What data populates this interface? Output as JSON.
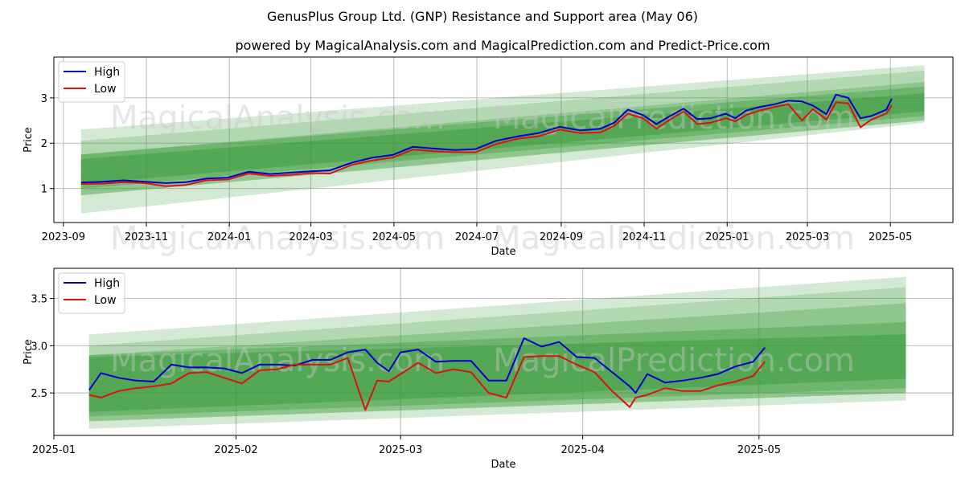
{
  "header": {
    "title": "GenusPlus Group Ltd. (GNP) Resistance and Support area (May 06)",
    "subtitle": "powered by MagicalAnalysis.com and MagicalPrediction.com and Predict-Price.com"
  },
  "watermarks": [
    "MagicalAnalysis.com",
    "MagicalPrediction.com"
  ],
  "colors": {
    "high": "#0000cc",
    "low": "#dd1111",
    "band": "#3a9a3a",
    "grid": "#b0b0b0"
  },
  "chart_data": [
    {
      "type": "line",
      "xlabel": "Date",
      "ylabel": "Price",
      "xlim": [
        "2023-08-25",
        "2025-06-16"
      ],
      "ylim": [
        0.25,
        3.9
      ],
      "grid": true,
      "legend": "top-left",
      "xticks": [
        "2023-09",
        "2023-11",
        "2024-01",
        "2024-03",
        "2024-05",
        "2024-07",
        "2024-09",
        "2024-11",
        "2025-01",
        "2025-03",
        "2025-05"
      ],
      "yticks": [
        1,
        2,
        3
      ],
      "bands": {
        "x_start": "2023-09-14",
        "x_end": "2025-05-26",
        "fills": [
          {
            "start": [
              0.45,
              2.3
            ],
            "end": [
              2.45,
              3.72
            ],
            "alpha": 0.22
          },
          {
            "start": [
              0.85,
              2.05
            ],
            "end": [
              2.5,
              3.6
            ],
            "alpha": 0.22
          },
          {
            "start": [
              0.85,
              1.75
            ],
            "end": [
              2.5,
              3.35
            ],
            "alpha": 0.3
          },
          {
            "start": [
              1.0,
              1.75
            ],
            "end": [
              2.6,
              3.25
            ],
            "alpha": 0.38
          },
          {
            "start": [
              1.1,
              1.65
            ],
            "end": [
              2.7,
              3.1
            ],
            "alpha": 0.5
          }
        ]
      },
      "series": [
        {
          "name": "High",
          "x": [
            "2023-09-14",
            "2023-09-30",
            "2023-10-15",
            "2023-10-31",
            "2023-11-15",
            "2023-11-30",
            "2023-12-15",
            "2023-12-31",
            "2024-01-15",
            "2024-01-31",
            "2024-02-15",
            "2024-03-01",
            "2024-03-15",
            "2024-03-31",
            "2024-04-15",
            "2024-04-30",
            "2024-05-15",
            "2024-05-31",
            "2024-06-15",
            "2024-06-30",
            "2024-07-15",
            "2024-07-31",
            "2024-08-15",
            "2024-08-31",
            "2024-09-15",
            "2024-09-30",
            "2024-10-10",
            "2024-10-20",
            "2024-10-31",
            "2024-11-10",
            "2024-11-20",
            "2024-11-30",
            "2024-12-10",
            "2024-12-20",
            "2024-12-31",
            "2025-01-07",
            "2025-01-15",
            "2025-01-25",
            "2025-02-05",
            "2025-02-15",
            "2025-02-25",
            "2025-03-05",
            "2025-03-15",
            "2025-03-22",
            "2025-03-31",
            "2025-04-09",
            "2025-04-17",
            "2025-04-28",
            "2025-05-02"
          ],
          "values": [
            1.13,
            1.15,
            1.18,
            1.15,
            1.12,
            1.14,
            1.22,
            1.24,
            1.37,
            1.32,
            1.35,
            1.38,
            1.4,
            1.57,
            1.68,
            1.74,
            1.92,
            1.88,
            1.85,
            1.87,
            2.05,
            2.15,
            2.22,
            2.36,
            2.28,
            2.32,
            2.45,
            2.74,
            2.62,
            2.42,
            2.6,
            2.76,
            2.53,
            2.55,
            2.65,
            2.55,
            2.72,
            2.8,
            2.86,
            2.94,
            2.92,
            2.83,
            2.64,
            3.07,
            3.0,
            2.55,
            2.6,
            2.74,
            2.98
          ]
        },
        {
          "name": "Low",
          "x": [
            "2023-09-14",
            "2023-09-30",
            "2023-10-15",
            "2023-10-31",
            "2023-11-15",
            "2023-11-30",
            "2023-12-15",
            "2023-12-31",
            "2024-01-15",
            "2024-01-31",
            "2024-02-15",
            "2024-03-01",
            "2024-03-15",
            "2024-03-31",
            "2024-04-15",
            "2024-04-30",
            "2024-05-15",
            "2024-05-31",
            "2024-06-15",
            "2024-06-30",
            "2024-07-15",
            "2024-07-31",
            "2024-08-15",
            "2024-08-31",
            "2024-09-15",
            "2024-09-30",
            "2024-10-10",
            "2024-10-20",
            "2024-10-31",
            "2024-11-10",
            "2024-11-20",
            "2024-11-30",
            "2024-12-10",
            "2024-12-20",
            "2024-12-31",
            "2025-01-07",
            "2025-01-15",
            "2025-01-25",
            "2025-02-05",
            "2025-02-15",
            "2025-02-25",
            "2025-03-05",
            "2025-03-15",
            "2025-03-22",
            "2025-03-31",
            "2025-04-09",
            "2025-04-17",
            "2025-04-28",
            "2025-05-02"
          ],
          "values": [
            1.1,
            1.11,
            1.14,
            1.12,
            1.05,
            1.08,
            1.18,
            1.2,
            1.33,
            1.28,
            1.3,
            1.34,
            1.33,
            1.52,
            1.62,
            1.68,
            1.86,
            1.82,
            1.8,
            1.8,
            1.98,
            2.1,
            2.15,
            2.3,
            2.22,
            2.24,
            2.38,
            2.65,
            2.55,
            2.32,
            2.52,
            2.7,
            2.42,
            2.45,
            2.55,
            2.48,
            2.62,
            2.72,
            2.8,
            2.86,
            2.5,
            2.75,
            2.52,
            2.9,
            2.88,
            2.35,
            2.52,
            2.65,
            2.84
          ]
        }
      ]
    },
    {
      "type": "line",
      "xlabel": "Date",
      "ylabel": "Price",
      "xlim": [
        "2025-01-01",
        "2025-06-03"
      ],
      "ylim": [
        2.05,
        3.82
      ],
      "grid": true,
      "legend": "top-left",
      "xticks": [
        "2025-01",
        "2025-02",
        "2025-03",
        "2025-04",
        "2025-05"
      ],
      "yticks": [
        2.5,
        3.0,
        3.5
      ],
      "bands": {
        "x_start": "2025-01-07",
        "x_end": "2025-05-26",
        "fills": [
          {
            "start": [
              2.12,
              3.12
            ],
            "end": [
              2.42,
              3.73
            ],
            "alpha": 0.22
          },
          {
            "start": [
              2.2,
              3.0
            ],
            "end": [
              2.5,
              3.62
            ],
            "alpha": 0.22
          },
          {
            "start": [
              2.2,
              2.9
            ],
            "end": [
              2.5,
              3.45
            ],
            "alpha": 0.3
          },
          {
            "start": [
              2.25,
              2.9
            ],
            "end": [
              2.55,
              3.25
            ],
            "alpha": 0.38
          },
          {
            "start": [
              2.3,
              2.88
            ],
            "end": [
              2.65,
              3.12
            ],
            "alpha": 0.5
          }
        ]
      },
      "series": [
        {
          "name": "High",
          "x": [
            "2025-01-07",
            "2025-01-09",
            "2025-01-12",
            "2025-01-15",
            "2025-01-18",
            "2025-01-21",
            "2025-01-24",
            "2025-01-27",
            "2025-01-30",
            "2025-02-02",
            "2025-02-05",
            "2025-02-08",
            "2025-02-11",
            "2025-02-14",
            "2025-02-17",
            "2025-02-20",
            "2025-02-23",
            "2025-02-25",
            "2025-02-27",
            "2025-03-01",
            "2025-03-04",
            "2025-03-07",
            "2025-03-10",
            "2025-03-13",
            "2025-03-16",
            "2025-03-19",
            "2025-03-22",
            "2025-03-25",
            "2025-03-28",
            "2025-03-31",
            "2025-04-03",
            "2025-04-06",
            "2025-04-09",
            "2025-04-10",
            "2025-04-12",
            "2025-04-15",
            "2025-04-18",
            "2025-04-21",
            "2025-04-24",
            "2025-04-27",
            "2025-04-30",
            "2025-05-02"
          ],
          "values": [
            2.53,
            2.71,
            2.66,
            2.63,
            2.62,
            2.8,
            2.77,
            2.77,
            2.76,
            2.71,
            2.8,
            2.8,
            2.79,
            2.85,
            2.85,
            2.93,
            2.96,
            2.82,
            2.73,
            2.93,
            2.96,
            2.83,
            2.84,
            2.84,
            2.63,
            2.63,
            3.08,
            2.99,
            3.04,
            2.88,
            2.87,
            2.72,
            2.57,
            2.5,
            2.7,
            2.61,
            2.63,
            2.66,
            2.7,
            2.78,
            2.83,
            2.98
          ]
        },
        {
          "name": "Low",
          "x": [
            "2025-01-07",
            "2025-01-09",
            "2025-01-12",
            "2025-01-15",
            "2025-01-18",
            "2025-01-21",
            "2025-01-24",
            "2025-01-27",
            "2025-01-30",
            "2025-02-02",
            "2025-02-05",
            "2025-02-08",
            "2025-02-11",
            "2025-02-14",
            "2025-02-17",
            "2025-02-20",
            "2025-02-23",
            "2025-02-25",
            "2025-02-27",
            "2025-03-01",
            "2025-03-04",
            "2025-03-07",
            "2025-03-10",
            "2025-03-13",
            "2025-03-16",
            "2025-03-19",
            "2025-03-22",
            "2025-03-25",
            "2025-03-28",
            "2025-03-31",
            "2025-04-03",
            "2025-04-06",
            "2025-04-09",
            "2025-04-10",
            "2025-04-12",
            "2025-04-15",
            "2025-04-18",
            "2025-04-21",
            "2025-04-24",
            "2025-04-27",
            "2025-04-30",
            "2025-05-02"
          ],
          "values": [
            2.48,
            2.45,
            2.52,
            2.55,
            2.57,
            2.6,
            2.71,
            2.72,
            2.66,
            2.6,
            2.74,
            2.75,
            2.8,
            2.8,
            2.8,
            2.87,
            2.32,
            2.63,
            2.62,
            2.7,
            2.82,
            2.71,
            2.75,
            2.72,
            2.5,
            2.45,
            2.88,
            2.89,
            2.89,
            2.8,
            2.72,
            2.52,
            2.35,
            2.45,
            2.48,
            2.55,
            2.52,
            2.52,
            2.58,
            2.62,
            2.68,
            2.83
          ]
        }
      ]
    }
  ]
}
